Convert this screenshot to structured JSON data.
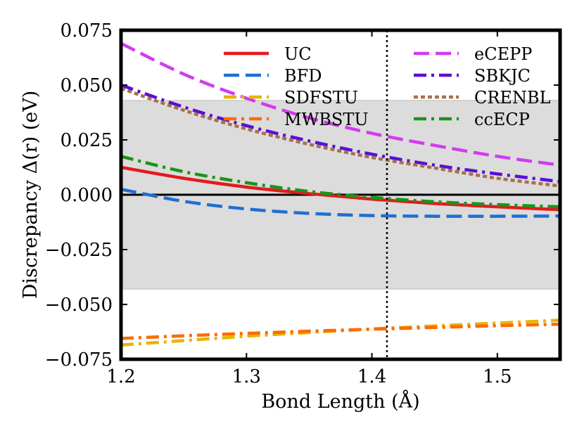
{
  "chart_data": {
    "type": "line",
    "title": "",
    "xlabel": "Bond Length (Å)",
    "ylabel": "Discrepancy Δ(r) (eV)",
    "xlim": [
      1.2,
      1.55
    ],
    "ylim": [
      -0.075,
      0.075
    ],
    "xticks": [
      1.2,
      1.3,
      1.4,
      1.5
    ],
    "xtick_labels": [
      "1.2",
      "1.3",
      "1.4",
      "1.5"
    ],
    "yticks": [
      -0.075,
      -0.05,
      -0.025,
      0.0,
      0.025,
      0.05,
      0.075
    ],
    "ytick_labels": [
      "−0.075",
      "−0.050",
      "−0.025",
      "0.000",
      "0.025",
      "0.050",
      "0.075"
    ],
    "shaded_band": [
      -0.043,
      0.043
    ],
    "zero_line": 0.0,
    "reference_line_x": 1.412,
    "legend_position": "top",
    "x": [
      1.2,
      1.25,
      1.3,
      1.35,
      1.4,
      1.45,
      1.5,
      1.55
    ],
    "series": [
      {
        "name": "UC",
        "color": "#e41a1c",
        "style": "solid",
        "values": [
          0.0125,
          0.0075,
          0.0035,
          0.0005,
          -0.002,
          -0.004,
          -0.0055,
          -0.0068
        ]
      },
      {
        "name": "BFD",
        "color": "#1f6fd1",
        "style": "dashed",
        "values": [
          0.0025,
          -0.003,
          -0.0065,
          -0.0085,
          -0.0095,
          -0.0098,
          -0.0098,
          -0.0097
        ]
      },
      {
        "name": "SDFSTU",
        "color": "#e8b400",
        "style": "dashdot",
        "values": [
          -0.0685,
          -0.0665,
          -0.0645,
          -0.0628,
          -0.0612,
          -0.0598,
          -0.0585,
          -0.0572
        ]
      },
      {
        "name": "MWBSTU",
        "color": "#ff6a00",
        "style": "dashdot",
        "values": [
          -0.0655,
          -0.0643,
          -0.0632,
          -0.0622,
          -0.0613,
          -0.0605,
          -0.0597,
          -0.059
        ]
      },
      {
        "name": "eCEPP",
        "color": "#d13cf0",
        "style": "dashed",
        "values": [
          0.069,
          0.055,
          0.044,
          0.035,
          0.028,
          0.0225,
          0.0175,
          0.0135
        ]
      },
      {
        "name": "SBKJC",
        "color": "#5a0fd6",
        "style": "dashdot",
        "values": [
          0.05,
          0.04,
          0.0315,
          0.0245,
          0.0185,
          0.0135,
          0.0095,
          0.006
        ]
      },
      {
        "name": "CRENBL",
        "color": "#a6714a",
        "style": "dotted",
        "values": [
          0.0485,
          0.0385,
          0.03,
          0.023,
          0.017,
          0.0122,
          0.0075,
          0.004
        ]
      },
      {
        "name": "ccECP",
        "color": "#179617",
        "style": "dashdot",
        "values": [
          0.0175,
          0.0105,
          0.0055,
          0.0015,
          -0.0012,
          -0.0032,
          -0.0045,
          -0.0055
        ]
      }
    ]
  }
}
